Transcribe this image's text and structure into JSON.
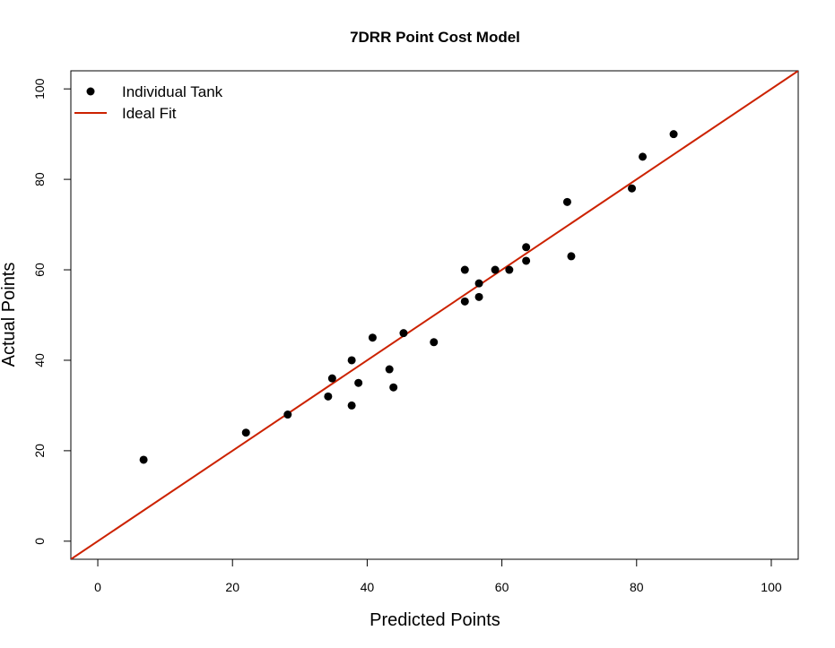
{
  "chart_data": {
    "type": "scatter",
    "title": "7DRR Point Cost Model",
    "xlabel": "Predicted Points",
    "ylabel": "Actual Points",
    "xlim": [
      -4,
      104
    ],
    "ylim": [
      -4,
      104
    ],
    "xticks": [
      "0",
      "20",
      "40",
      "60",
      "80",
      "100"
    ],
    "yticks": [
      "0",
      "20",
      "40",
      "60",
      "80",
      "100"
    ],
    "grid": false,
    "legend_position": "top-left",
    "series": [
      {
        "name": "Individual Tank",
        "kind": "points",
        "color": "#000000",
        "points": [
          {
            "x": 6.8,
            "y": 18
          },
          {
            "x": 22,
            "y": 24
          },
          {
            "x": 28.2,
            "y": 28
          },
          {
            "x": 34.2,
            "y": 32
          },
          {
            "x": 34.8,
            "y": 36
          },
          {
            "x": 37.7,
            "y": 30
          },
          {
            "x": 37.7,
            "y": 40
          },
          {
            "x": 38.7,
            "y": 35
          },
          {
            "x": 40.8,
            "y": 45
          },
          {
            "x": 43.3,
            "y": 38
          },
          {
            "x": 43.9,
            "y": 34
          },
          {
            "x": 45.4,
            "y": 46
          },
          {
            "x": 49.9,
            "y": 44
          },
          {
            "x": 54.5,
            "y": 53
          },
          {
            "x": 54.5,
            "y": 60
          },
          {
            "x": 56.6,
            "y": 54
          },
          {
            "x": 56.6,
            "y": 57
          },
          {
            "x": 59,
            "y": 60
          },
          {
            "x": 61.1,
            "y": 60
          },
          {
            "x": 63.6,
            "y": 62
          },
          {
            "x": 63.6,
            "y": 65
          },
          {
            "x": 69.7,
            "y": 75
          },
          {
            "x": 70.3,
            "y": 63
          },
          {
            "x": 79.3,
            "y": 78
          },
          {
            "x": 80.9,
            "y": 85
          },
          {
            "x": 85.5,
            "y": 90
          }
        ]
      },
      {
        "name": "Ideal Fit",
        "kind": "line",
        "color": "#cc2200",
        "intercept": 0,
        "slope": 1
      }
    ]
  }
}
